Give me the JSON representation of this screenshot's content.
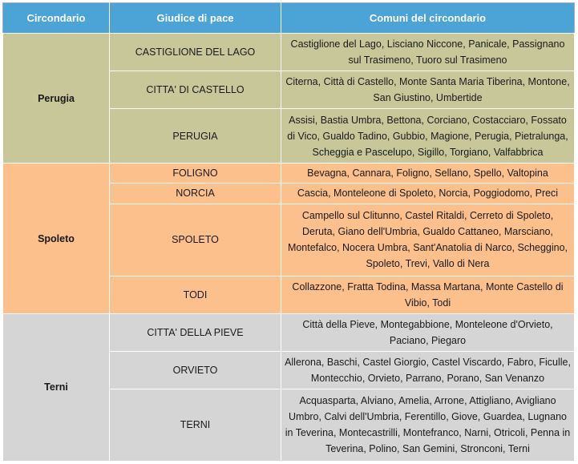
{
  "header": {
    "col_circondario": "Circondario",
    "col_giudice": "Giudice di pace",
    "col_comuni": "Comuni del circondario"
  },
  "groups": [
    {
      "circondario": "Perugia",
      "color": "#c7c79a",
      "rows": [
        {
          "giudice": "CASTIGLIONE  DEL LAGO",
          "comuni": "Castiglione del Lago, Lisciano Niccone, Panicale, Passignano sul Trasimeno, Tuoro sul Trasimeno"
        },
        {
          "giudice": "CITTA'  DI CASTELLO",
          "comuni": "Citerna, Città di Castello, Monte Santa Maria Tiberina, Montone, San Giustino, Umbertide"
        },
        {
          "giudice": "PERUGIA",
          "comuni": "Assisi, Bastia Umbra, Bettona, Corciano, Costacciaro, Fossato di Vico, Gualdo Tadino, Gubbio, Magione, Perugia, Pietralunga, Scheggia e Pascelupo, Sigillo, Torgiano, Valfabbrica"
        }
      ]
    },
    {
      "circondario": "Spoleto",
      "color": "#fbc08c",
      "rows": [
        {
          "giudice": "FOLIGNO",
          "comuni": "Bevagna, Cannara,  Foligno, Sellano, Spello, Valtopina"
        },
        {
          "giudice": "NORCIA",
          "comuni": "Cascia, Monteleone di Spoleto, Norcia, Poggiodomo, Preci"
        },
        {
          "giudice": "SPOLETO",
          "comuni": "Campello sul Clitunno, Castel Ritaldi, Cerreto di Spoleto, Deruta, Giano dell'Umbria, Gualdo Cattaneo, Marsciano, Montefalco, Nocera Umbra, Sant'Anatolia di Narco, Scheggino, Spoleto, Trevi, Vallo di Nera"
        },
        {
          "giudice": "TODI",
          "comuni": "Collazzone, Fratta Todina, Massa Martana,  Monte Castello di Vibio, Todi"
        }
      ]
    },
    {
      "circondario": "Terni",
      "color": "#d5d5d5",
      "rows": [
        {
          "giudice": "CITTA'  DELLA PIEVE",
          "comuni": "Città della Pieve, Montegabbione, Monteleone d'Orvieto, Paciano, Piegaro"
        },
        {
          "giudice": "ORVIETO",
          "comuni": "Allerona, Baschi, Castel Giorgio, Castel Viscardo, Fabro, Ficulle, Montecchio, Orvieto, Parrano, Porano, San Venanzo"
        },
        {
          "giudice": "TERNI",
          "comuni": "Acquasparta, Alviano, Amelia, Arrone, Attigliano, Avigliano Umbro, Calvi dell'Umbria, Ferentillo, Giove, Guardea, Lugnano in Teverina,  Montecastrilli, Montefranco, Narni, Otricoli, Penna in Teverina,  Polino, San Gemini, Stronconi, Terni"
        }
      ]
    }
  ]
}
